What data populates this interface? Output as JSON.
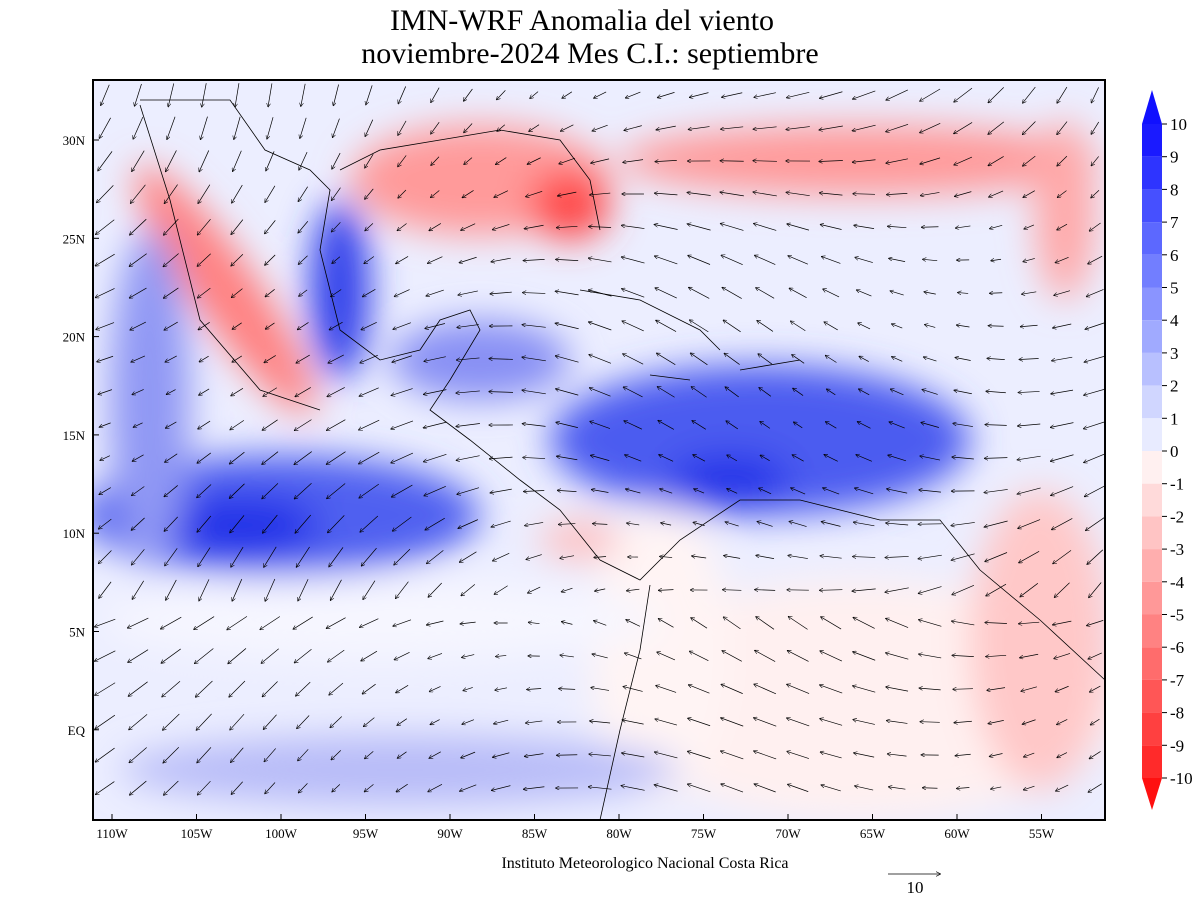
{
  "header": {
    "title": "IMN-WRF Anomalia del viento",
    "subtitle": "noviembre-2024 Mes C.I.: septiembre"
  },
  "map": {
    "lon_labels": [
      "110W",
      "105W",
      "100W",
      "95W",
      "90W",
      "85W",
      "80W",
      "75W",
      "70W",
      "65W",
      "60W",
      "55W"
    ],
    "lat_labels": [
      "30N",
      "25N",
      "20N",
      "15N",
      "10N",
      "5N",
      "EQ"
    ]
  },
  "colorbar": {
    "labels": [
      "10",
      "9",
      "8",
      "7",
      "6",
      "5",
      "4",
      "3",
      "2",
      "1",
      "0",
      "-1",
      "-2",
      "-3",
      "-4",
      "-5",
      "-6",
      "-7",
      "-8",
      "-9",
      "-10"
    ]
  },
  "footer": {
    "credit": "Instituto Meteorologico Nacional Costa Rica",
    "reference_vector": "10"
  }
}
